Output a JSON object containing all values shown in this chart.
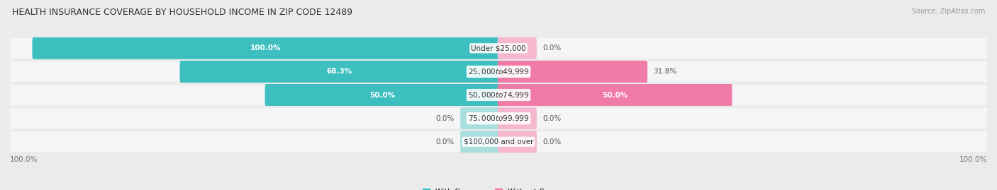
{
  "title": "HEALTH INSURANCE COVERAGE BY HOUSEHOLD INCOME IN ZIP CODE 12489",
  "source": "Source: ZipAtlas.com",
  "categories": [
    "Under $25,000",
    "$25,000 to $49,999",
    "$50,000 to $74,999",
    "$75,000 to $99,999",
    "$100,000 and over"
  ],
  "with_coverage": [
    100.0,
    68.3,
    50.0,
    0.0,
    0.0
  ],
  "without_coverage": [
    0.0,
    31.8,
    50.0,
    0.0,
    0.0
  ],
  "with_coverage_labels": [
    "100.0%",
    "68.3%",
    "50.0%",
    "0.0%",
    "0.0%"
  ],
  "without_coverage_labels": [
    "0.0%",
    "31.8%",
    "50.0%",
    "0.0%",
    "0.0%"
  ],
  "color_with": "#3dbfbf",
  "color_without": "#f07aa8",
  "color_with_zero": "#a8dede",
  "color_without_zero": "#f5b8ce",
  "bg_color": "#ebebeb",
  "row_bg_color": "#f5f5f5",
  "title_fontsize": 9.0,
  "label_fontsize": 7.5,
  "source_fontsize": 7.0,
  "legend_fontsize": 7.5,
  "bar_height": 0.52,
  "xlim": 105,
  "axis_label_left": "100.0%",
  "axis_label_right": "100.0%"
}
